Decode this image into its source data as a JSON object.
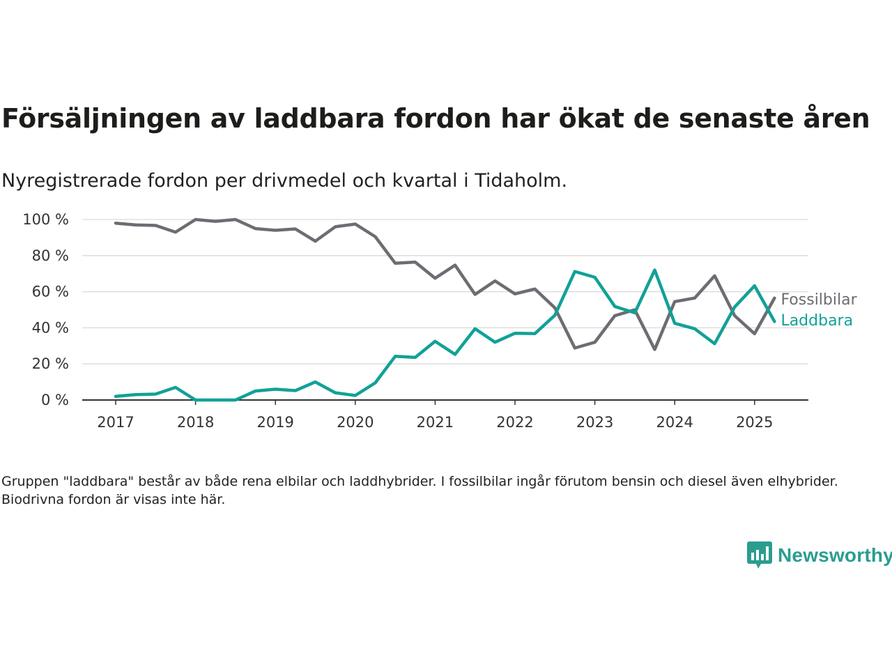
{
  "header": {
    "title": "Försäljningen av laddbara fordon har ökat de senaste åren",
    "subtitle": "Nyregistrerade fordon per drivmedel och kvartal i Tidaholm."
  },
  "footnote": "Gruppen \"laddbara\" består av både rena elbilar och laddhybrider. I fossilbilar ingår förutom bensin och diesel även elhybrider. Biodrivna fordon är visas inte här.",
  "brand": {
    "name": "Newsworthy",
    "color": "#2a9d8f"
  },
  "chart_data": {
    "type": "line",
    "title": "Försäljningen av laddbara fordon har ökat de senaste åren",
    "subtitle": "Nyregistrerade fordon per drivmedel och kvartal i Tidaholm.",
    "xlabel": "",
    "ylabel": "",
    "x_ticks": [
      "2017",
      "2018",
      "2019",
      "2020",
      "2021",
      "2022",
      "2023",
      "2024",
      "2025"
    ],
    "y_ticks": [
      "0 %",
      "20 %",
      "40 %",
      "60 %",
      "80 %",
      "100 %"
    ],
    "ylim": [
      0,
      100
    ],
    "grid": "horizontal",
    "legend": "inline labels at line ends (right)",
    "x": [
      "2017 Q1",
      "2017 Q2",
      "2017 Q3",
      "2017 Q4",
      "2018 Q1",
      "2018 Q2",
      "2018 Q3",
      "2018 Q4",
      "2019 Q1",
      "2019 Q2",
      "2019 Q3",
      "2019 Q4",
      "2020 Q1",
      "2020 Q2",
      "2020 Q3",
      "2020 Q4",
      "2021 Q1",
      "2021 Q2",
      "2021 Q3",
      "2021 Q4",
      "2022 Q1",
      "2022 Q2",
      "2022 Q3",
      "2022 Q4",
      "2023 Q1",
      "2023 Q2",
      "2023 Q3",
      "2023 Q4",
      "2024 Q1",
      "2024 Q2",
      "2024 Q3",
      "2024 Q4",
      "2025 Q1",
      "2025 Q2"
    ],
    "series": [
      {
        "name": "Fossilbilar",
        "color": "#6e6c73",
        "values": [
          98,
          97,
          96.7,
          93,
          100,
          99,
          100,
          95,
          94,
          94.8,
          88,
          96,
          97.5,
          90.5,
          75.8,
          76.4,
          67.5,
          74.7,
          58.5,
          66,
          58.8,
          61.5,
          51,
          28.8,
          32,
          46.7,
          50,
          28,
          54.5,
          56.5,
          68.8,
          46.7,
          36.7,
          56.5
        ]
      },
      {
        "name": "Laddbara",
        "color": "#11a197",
        "values": [
          2,
          3,
          3.3,
          7,
          0,
          0,
          0,
          5,
          6,
          5.2,
          10,
          4,
          2.5,
          9.5,
          24.2,
          23.6,
          32.5,
          25.3,
          39.5,
          32,
          37,
          36.8,
          47,
          71.2,
          68,
          51.8,
          48.3,
          72,
          42.5,
          39.5,
          31.2,
          51.5,
          63.3,
          43.5
        ]
      }
    ]
  }
}
